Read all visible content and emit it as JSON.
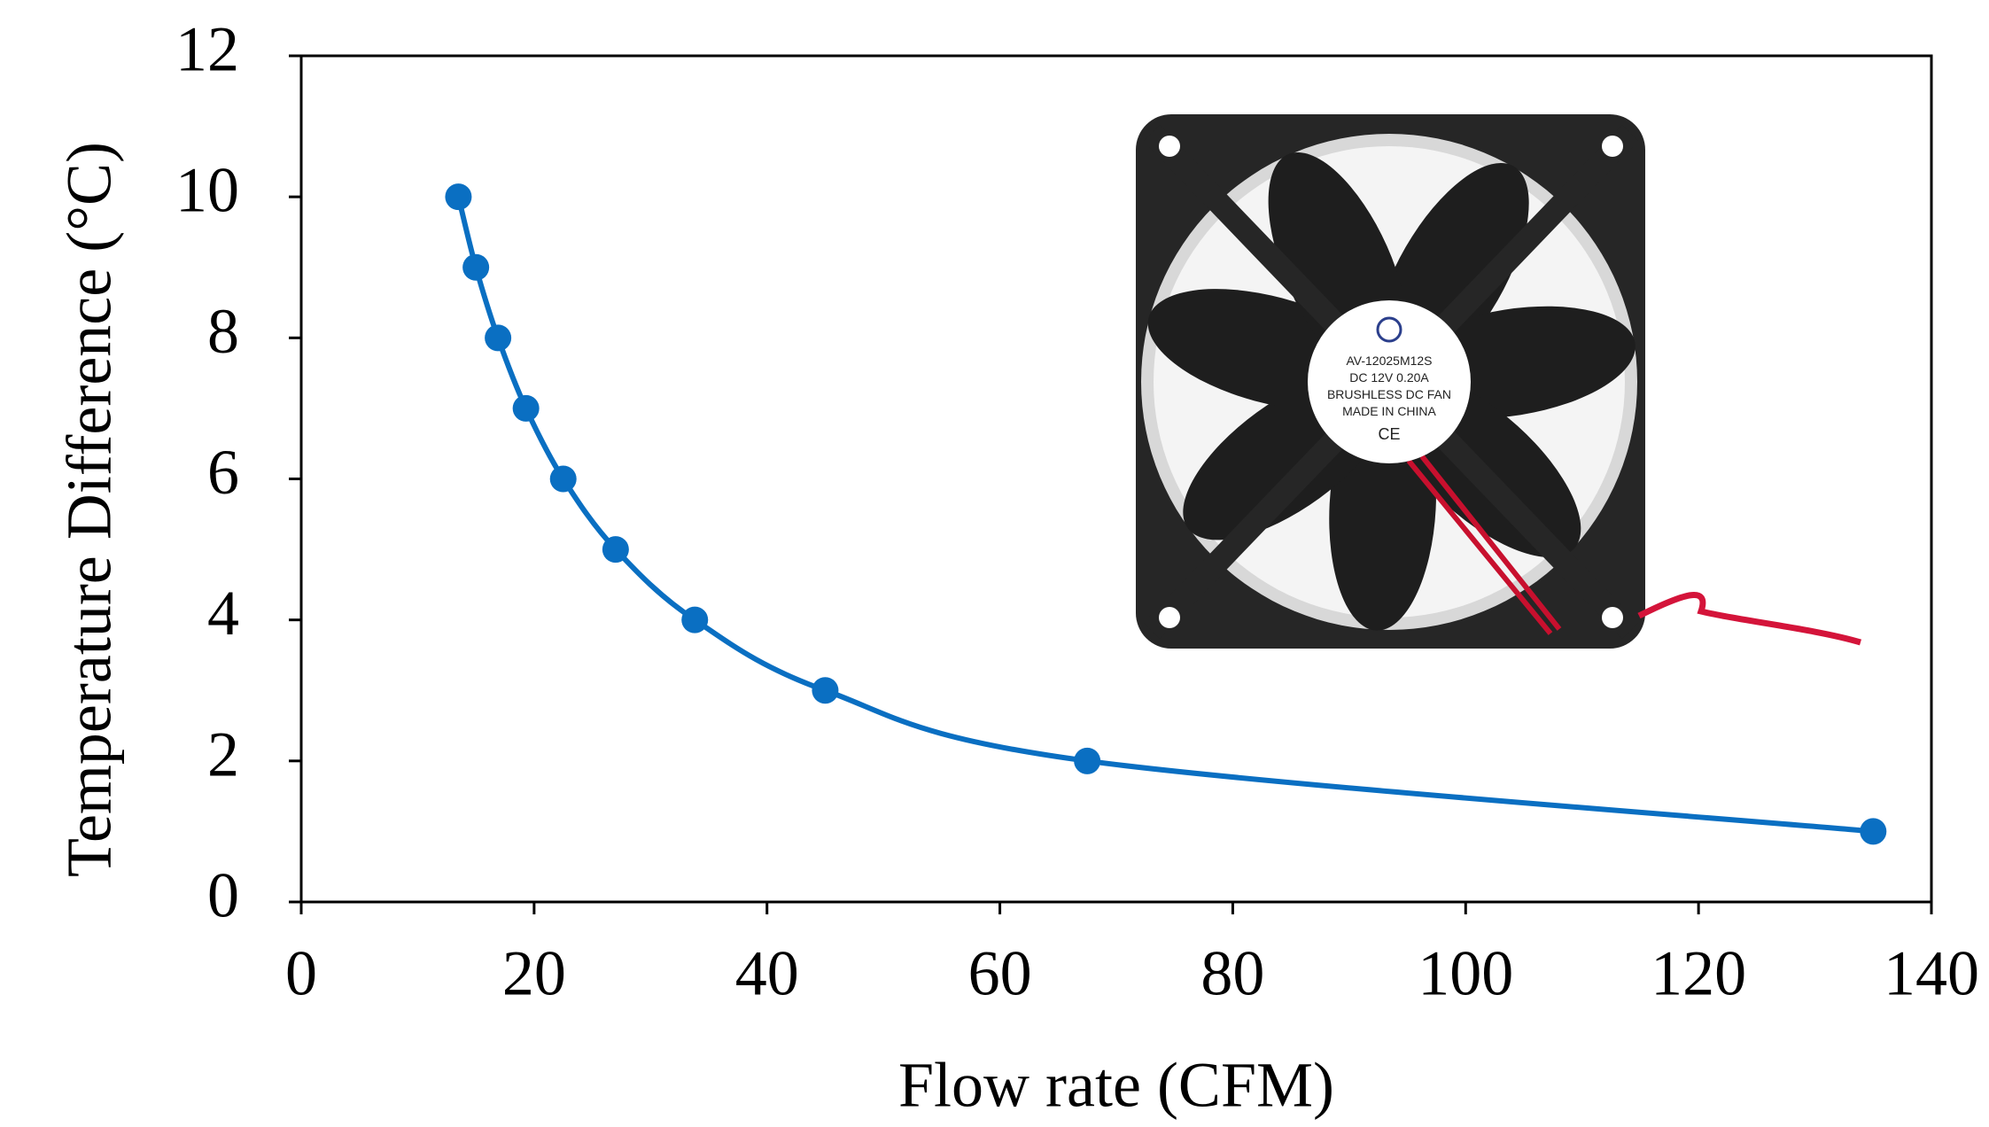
{
  "chart_data": {
    "type": "line",
    "x_label": "Flow rate (CFM)",
    "y_label": "Temperature Difference  (°C)",
    "x": [
      13.5,
      15,
      16.9,
      19.3,
      22.5,
      27,
      33.8,
      45,
      67.5,
      135
    ],
    "series": [
      {
        "color": "#0a6fc2",
        "values": [
          10,
          9,
          8,
          7,
          6,
          5,
          4,
          3,
          2,
          1
        ]
      }
    ],
    "xlim": [
      0,
      140
    ],
    "xticks": [
      0,
      20,
      40,
      60,
      80,
      100,
      120,
      140
    ],
    "ylim": [
      0,
      12
    ],
    "yticks": [
      0,
      2,
      4,
      6,
      8,
      10,
      12
    ],
    "inset_labels": [
      "AV-12025M12S",
      "DC   12V   0.20A",
      "BRUSHLESS DC FAN",
      "MADE IN CHINA",
      "CE"
    ]
  }
}
